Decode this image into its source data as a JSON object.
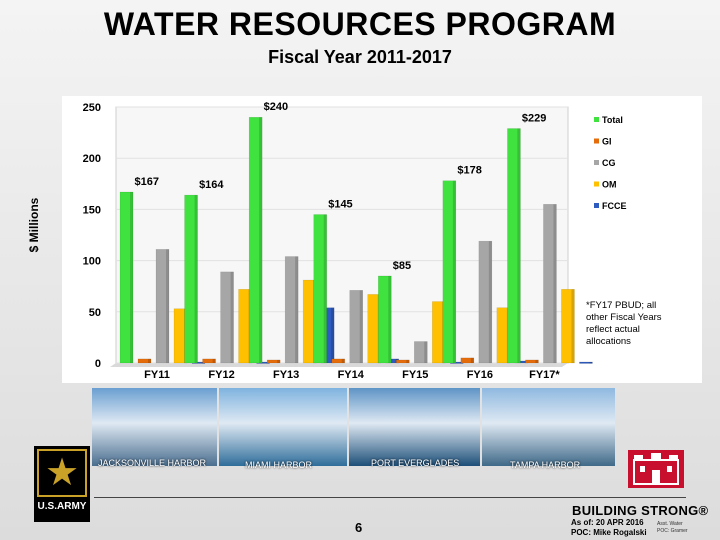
{
  "header": {
    "title": "WATER RESOURCES PROGRAM",
    "subtitle": "Fiscal Year 2011-2017"
  },
  "chart_data": {
    "type": "bar",
    "title": "WATER RESOURCES PROGRAM",
    "subtitle": "Fiscal Year 2011-2017",
    "xlabel": "",
    "ylabel": "$ Millions",
    "ylim": [
      0,
      250
    ],
    "yticks": [
      0,
      50,
      100,
      150,
      200,
      250
    ],
    "categories": [
      "FY11",
      "FY12",
      "FY13",
      "FY14",
      "FY15",
      "FY16",
      "FY17*"
    ],
    "series": [
      {
        "name": "Total",
        "color": "#3fe23f",
        "values": [
          167,
          164,
          240,
          145,
          85,
          178,
          229
        ]
      },
      {
        "name": "GI",
        "color": "#e46c0a",
        "values": [
          4,
          4,
          3,
          4,
          3,
          5,
          3
        ]
      },
      {
        "name": "CG",
        "color": "#a6a6a6",
        "values": [
          111,
          89,
          104,
          71,
          21,
          119,
          155
        ]
      },
      {
        "name": "OM",
        "color": "#ffc000",
        "values": [
          53,
          72,
          81,
          67,
          60,
          54,
          72
        ]
      },
      {
        "name": "FCCE",
        "color": "#2e5bbf",
        "values": [
          1,
          1,
          54,
          4,
          1,
          2,
          1
        ]
      }
    ],
    "data_labels": [
      "$167",
      "$164",
      "$240",
      "$145",
      "$85",
      "$178",
      "$229"
    ],
    "legend_position": "right",
    "note": "*FY17 PBUD; all other Fiscal Years reflect actual allocations"
  },
  "photos": [
    {
      "label": "JACKSONVILLE HARBOR",
      "color_top": "#6a9fd1",
      "color_bottom": "#4a6e8f"
    },
    {
      "label": "MIAMI HARBOR",
      "color_top": "#7fb3df",
      "color_bottom": "#2f6d9a"
    },
    {
      "label": "PORT EVERGLADES",
      "color_top": "#5e94c6",
      "color_bottom": "#1d4f78"
    },
    {
      "label": "TAMPA HARBOR",
      "color_top": "#8fb9e0",
      "color_bottom": "#3f6988"
    }
  ],
  "footer": {
    "army_logo_text": "U.S.ARMY",
    "page_number": "6",
    "tagline": "BUILDING STRONG®",
    "as_of": "As of: 20 APR 2016",
    "poc": "POC: Mike Rogalski",
    "small1": "Asst. Water",
    "small2": "POC: Gramer"
  }
}
